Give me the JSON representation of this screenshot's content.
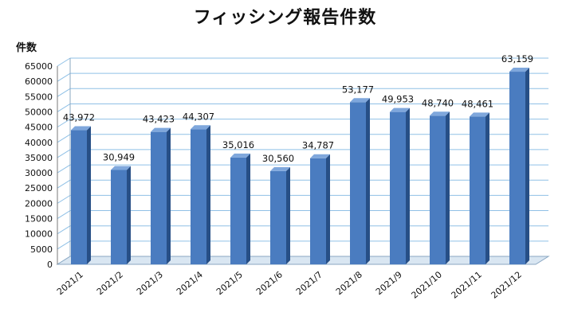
{
  "chart_data": {
    "type": "bar",
    "title": "フィッシング報告件数",
    "ylabel": "件数",
    "xlabel": "",
    "categories": [
      "2021/1",
      "2021/2",
      "2021/3",
      "2021/4",
      "2021/5",
      "2021/6",
      "2021/7",
      "2021/8",
      "2021/9",
      "2021/10",
      "2021/11",
      "2021/12"
    ],
    "values": [
      43972,
      30949,
      43423,
      44307,
      35016,
      30560,
      34787,
      53177,
      49953,
      48740,
      48461,
      63159
    ],
    "data_labels": [
      "43,972",
      "30,949",
      "43,423",
      "44,307",
      "35,016",
      "30,560",
      "34,787",
      "53,177",
      "49,953",
      "48,740",
      "48,461",
      "63,159"
    ],
    "ylim": [
      0,
      65000
    ],
    "yticks": [
      0,
      5000,
      10000,
      15000,
      20000,
      25000,
      30000,
      35000,
      40000,
      45000,
      50000,
      55000,
      60000,
      65000
    ],
    "grid": true,
    "legend": "none",
    "bar_color": "#4a7cc0",
    "bar_side_color": "#274f86",
    "bar_top_color": "#7fa7dc",
    "grid_color": "#8fc0e6"
  }
}
